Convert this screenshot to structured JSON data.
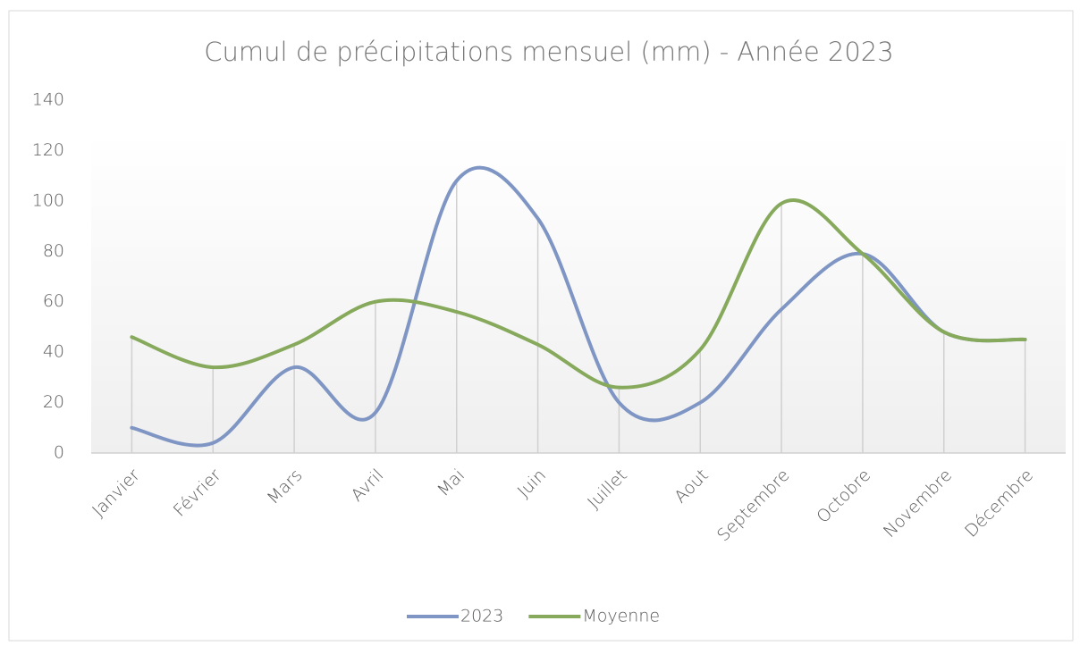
{
  "chart_data": {
    "type": "line",
    "title": "Cumul de précipitations mensuel (mm) - Année 2023",
    "categories": [
      "Janvier",
      "Février",
      "Mars",
      "Avril",
      "Mai",
      "Juin",
      "Juillet",
      "Aout",
      "Septembre",
      "Octobre",
      "Novembre",
      "Décembre"
    ],
    "series": [
      {
        "name": "2023",
        "color": "#7f96c4",
        "values": [
          10,
          4,
          34,
          16,
          108,
          93,
          20,
          20,
          57,
          79,
          48,
          45
        ]
      },
      {
        "name": "Moyenne",
        "color": "#86a95c",
        "values": [
          46,
          34,
          43,
          60,
          56,
          43,
          26,
          41,
          99,
          79,
          48,
          45
        ]
      }
    ],
    "ylim": [
      0,
      140
    ],
    "yticks": [
      0,
      20,
      40,
      60,
      80,
      100,
      120,
      140
    ],
    "smooth": true,
    "drop_lines": true,
    "legend": "bottom"
  }
}
